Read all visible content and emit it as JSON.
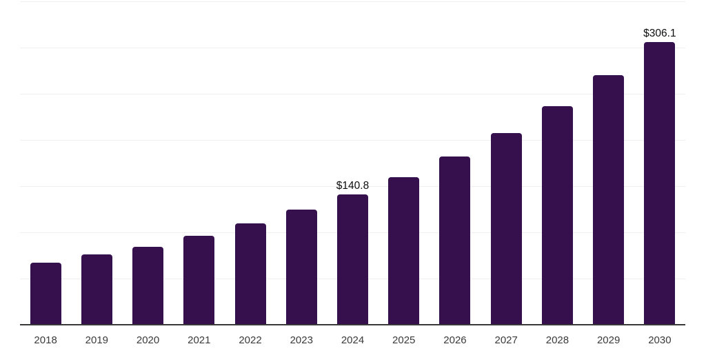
{
  "chart_data": {
    "type": "bar",
    "title": "",
    "xlabel": "",
    "ylabel": "",
    "categories": [
      "2018",
      "2019",
      "2020",
      "2021",
      "2022",
      "2023",
      "2024",
      "2025",
      "2026",
      "2027",
      "2028",
      "2029",
      "2030"
    ],
    "values": [
      67,
      75.8,
      84.7,
      96.6,
      110,
      124.9,
      140.8,
      159.8,
      182.1,
      207.4,
      236.4,
      269.8,
      306.1
    ],
    "data_labels": [
      null,
      null,
      null,
      null,
      null,
      null,
      "$140.8",
      null,
      null,
      null,
      null,
      null,
      "$306.1"
    ],
    "ylim": [
      0,
      350
    ],
    "gridline_step": 50,
    "grid": true,
    "legend": false,
    "y_axis_tick_labels_visible": false,
    "colors": {
      "bar": "#35104d",
      "gridline": "#efefef",
      "axis_line": "#383838",
      "tick_label": "#3a3a3a",
      "data_label": "#0d0d0d",
      "background": "#ffffff"
    }
  }
}
